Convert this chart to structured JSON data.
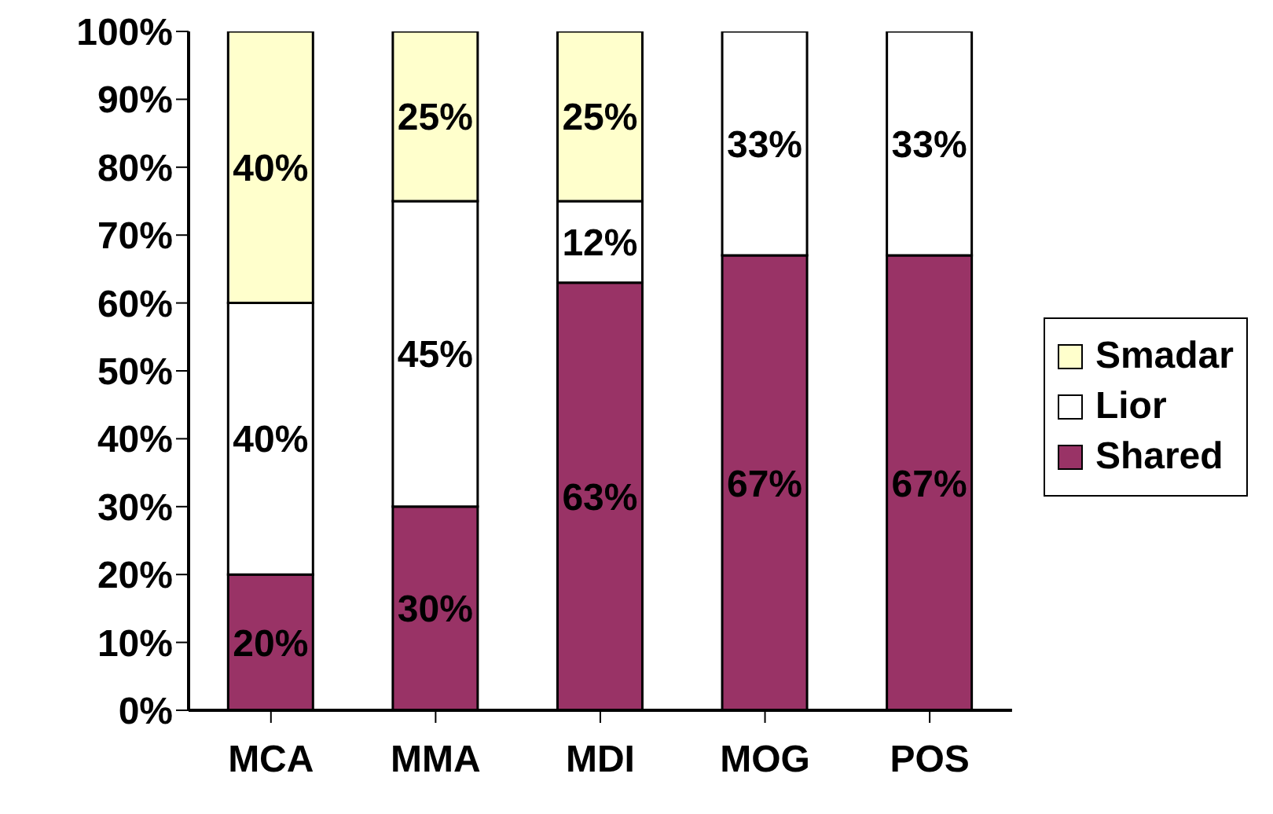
{
  "chart_data": {
    "type": "bar",
    "stacked": true,
    "categories": [
      "MCA",
      "MMA",
      "MDI",
      "MOG",
      "POS"
    ],
    "series": [
      {
        "name": "Shared",
        "color": "#993366",
        "values": [
          20,
          30,
          63,
          67,
          67
        ],
        "value_labels": [
          "20%",
          "30%",
          "63%",
          "67%",
          "67%"
        ]
      },
      {
        "name": "Lior",
        "color": "#ffffff",
        "values": [
          40,
          45,
          12,
          33,
          33
        ],
        "value_labels": [
          "40%",
          "45%",
          "12%",
          "33%",
          "33%"
        ]
      },
      {
        "name": "Smadar",
        "color": "#ffffcc",
        "values": [
          40,
          25,
          25,
          null,
          null
        ],
        "value_labels": [
          "40%",
          "25%",
          "25%",
          null,
          null
        ]
      }
    ],
    "ylim": [
      0,
      100
    ],
    "yticks": [
      {
        "value": 0,
        "label": "0%"
      },
      {
        "value": 10,
        "label": "10%"
      },
      {
        "value": 20,
        "label": "20%"
      },
      {
        "value": 30,
        "label": "30%"
      },
      {
        "value": 40,
        "label": "40%"
      },
      {
        "value": 50,
        "label": "50%"
      },
      {
        "value": 60,
        "label": "60%"
      },
      {
        "value": 70,
        "label": "70%"
      },
      {
        "value": 80,
        "label": "80%"
      },
      {
        "value": 90,
        "label": "90%"
      },
      {
        "value": 100,
        "label": "100%"
      }
    ],
    "grid": false,
    "legend": "right"
  }
}
